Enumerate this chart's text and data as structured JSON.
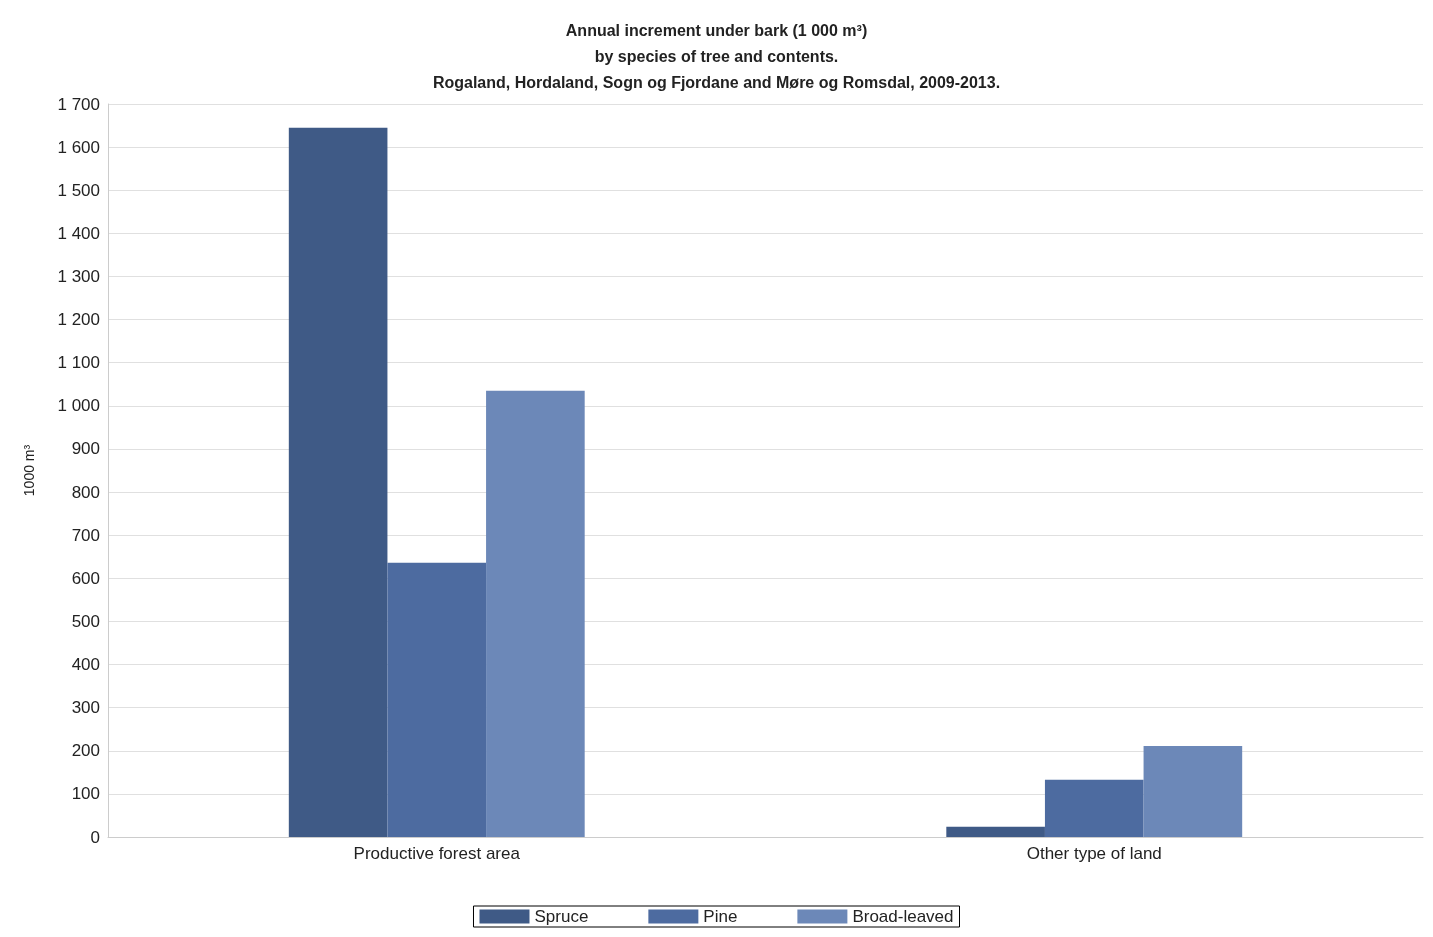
{
  "chart_data": {
    "type": "bar",
    "title": "Annual increment under bark (1 000 m³)\nby species of tree and contents.\nRogaland, Hordaland, Sogn og Fjordane and Møre og Romsdal, 2009-2013.",
    "ylabel": "1000 m³",
    "categories": [
      "Productive forest area",
      "Other type of land"
    ],
    "series": [
      {
        "name": "Spruce",
        "color": "#3f5a86",
        "values": [
          1645,
          24
        ]
      },
      {
        "name": "Pine",
        "color": "#4d6ba0",
        "values": [
          636,
          133
        ]
      },
      {
        "name": "Broad-leaved",
        "color": "#6c88b8",
        "values": [
          1035,
          211
        ]
      }
    ],
    "ylim": [
      0,
      1700
    ],
    "yticks": [
      0,
      100,
      200,
      300,
      400,
      500,
      600,
      700,
      800,
      900,
      {
        "value": 1000,
        "label": "1 000"
      },
      {
        "value": 1100,
        "label": "1 100"
      },
      {
        "value": 1200,
        "label": "1 200"
      },
      {
        "value": 1300,
        "label": "1 300"
      },
      {
        "value": 1400,
        "label": "1 400"
      },
      {
        "value": 1500,
        "label": "1 500"
      },
      {
        "value": 1600,
        "label": "1 600"
      },
      {
        "value": 1700,
        "label": "1 700"
      }
    ],
    "grid": "y",
    "legend": "bottom"
  }
}
